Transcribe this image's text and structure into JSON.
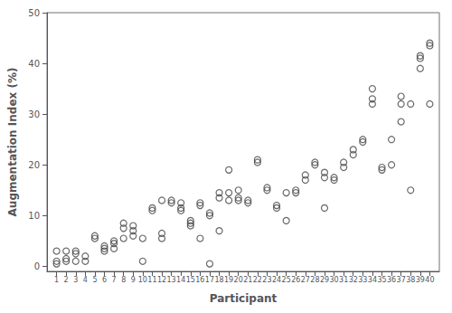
{
  "chart_data": {
    "type": "scatter",
    "xlabel": "Participant",
    "ylabel": "Augmentation Index (%)",
    "xlim": [
      0.0,
      41.0
    ],
    "xticks": [
      1,
      2,
      3,
      4,
      5,
      6,
      7,
      8,
      9,
      10,
      11,
      12,
      13,
      14,
      15,
      16,
      17,
      18,
      19,
      20,
      21,
      22,
      23,
      24,
      25,
      26,
      27,
      28,
      29,
      30,
      31,
      32,
      33,
      34,
      35,
      36,
      37,
      38,
      39,
      40
    ],
    "ylim": [
      -1,
      50
    ],
    "yticks": [
      0,
      10,
      20,
      30,
      40,
      50
    ],
    "x": [
      1,
      1,
      1,
      2,
      2,
      2,
      3,
      3,
      3,
      4,
      4,
      5,
      5,
      6,
      6,
      6,
      7,
      7,
      7,
      8,
      8,
      8,
      9,
      9,
      9,
      10,
      10,
      11,
      11,
      12,
      12,
      12,
      13,
      13,
      14,
      14,
      14,
      15,
      15,
      15,
      16,
      16,
      16,
      17,
      17,
      17,
      18,
      18,
      18,
      19,
      19,
      19,
      20,
      20,
      20,
      21,
      21,
      22,
      22,
      23,
      23,
      24,
      24,
      25,
      25,
      26,
      26,
      27,
      27,
      28,
      28,
      29,
      29,
      29,
      30,
      30,
      31,
      31,
      32,
      32,
      33,
      33,
      34,
      34,
      34,
      35,
      35,
      36,
      36,
      37,
      37,
      37,
      38,
      38,
      39,
      39,
      39,
      40,
      40,
      40
    ],
    "values": [
      0.5,
      1.0,
      3.0,
      1.0,
      1.5,
      3.0,
      1.0,
      2.5,
      3.0,
      1.0,
      2.0,
      5.5,
      6.0,
      3.0,
      3.5,
      4.0,
      3.5,
      4.5,
      5.0,
      5.5,
      7.5,
      8.5,
      6.0,
      7.0,
      8.0,
      1.0,
      5.5,
      11.0,
      11.5,
      5.5,
      6.5,
      13.0,
      12.5,
      13.0,
      11.0,
      11.5,
      12.5,
      8.0,
      8.5,
      9.0,
      5.5,
      12.0,
      12.5,
      0.5,
      10.0,
      10.5,
      7.0,
      13.5,
      14.5,
      19.0,
      13.0,
      14.5,
      13.0,
      13.5,
      15.0,
      12.5,
      13.0,
      20.5,
      21.0,
      15.0,
      15.5,
      11.5,
      12.0,
      9.0,
      14.5,
      14.5,
      15.0,
      17.0,
      18.0,
      20.0,
      20.5,
      11.5,
      17.5,
      18.5,
      17.0,
      17.5,
      19.5,
      20.5,
      22.0,
      23.0,
      24.5,
      25.0,
      32.0,
      33.0,
      35.0,
      19.0,
      19.5,
      20.0,
      25.0,
      28.5,
      32.0,
      33.5,
      15.0,
      32.0,
      39.0,
      41.0,
      41.5,
      32.0,
      43.5,
      44.0
    ],
    "color": "#444444",
    "marker": "open circle",
    "grid": false
  }
}
